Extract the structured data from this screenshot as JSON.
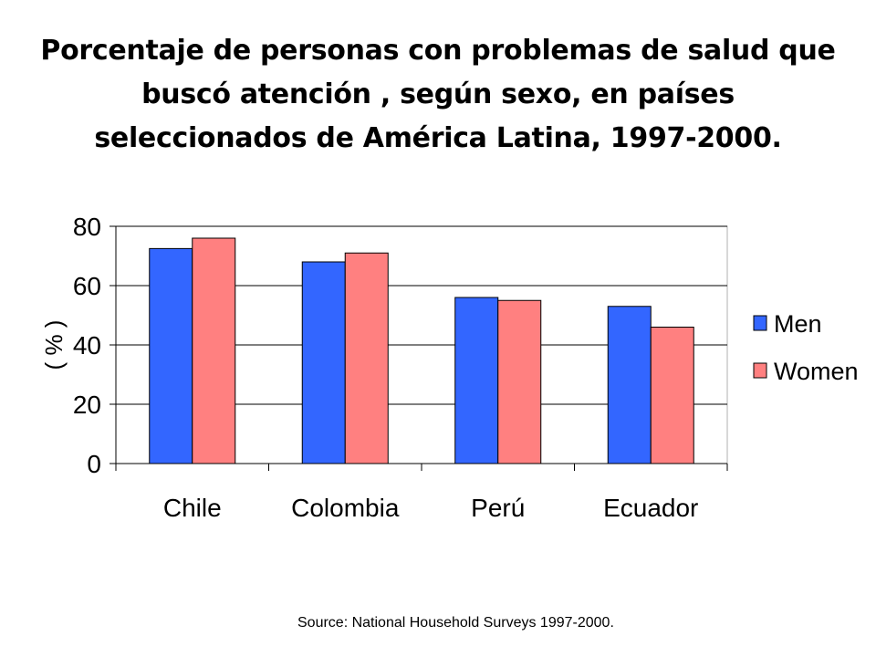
{
  "title_lines": [
    "Porcentaje de personas con problemas de salud que",
    "buscó atención , según sexo, en países",
    "seleccionados de América Latina, 1997-2000."
  ],
  "source": "Source: National Household Surveys 1997-2000.",
  "colors": {
    "men": "#3366ff",
    "women": "#ff8080",
    "grid": "#000000"
  },
  "chart_data": {
    "type": "bar",
    "title": "Porcentaje de personas con problemas de salud que buscó atención , según sexo, en países seleccionados de América Latina, 1997-2000.",
    "xlabel": "",
    "ylabel": "( % )",
    "ylim": [
      0,
      80
    ],
    "yticks": [
      0,
      20,
      40,
      60,
      80
    ],
    "grid": true,
    "legend_position": "right",
    "categories": [
      "Chile",
      "Colombia",
      "Perú",
      "Ecuador"
    ],
    "series": [
      {
        "name": "Men",
        "values": [
          72.5,
          68,
          56,
          53
        ]
      },
      {
        "name": "Women",
        "values": [
          76,
          71,
          55,
          46
        ]
      }
    ]
  }
}
